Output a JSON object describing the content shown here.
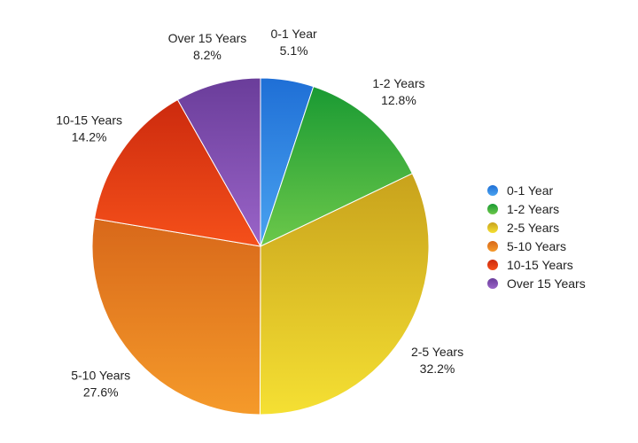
{
  "chart_data": {
    "type": "pie",
    "title": "",
    "legend_position": "right",
    "slices": [
      {
        "label": "0-1 Year",
        "percent_label": "5.1%",
        "value": 5.1,
        "color": "#1f6fd6",
        "color_light": "#4aa3f0"
      },
      {
        "label": "1-2 Years",
        "percent_label": "12.8%",
        "value": 12.8,
        "color": "#1a9a33",
        "color_light": "#6cc84a"
      },
      {
        "label": "2-5 Years",
        "percent_label": "32.2%",
        "value": 32.2,
        "color": "#c8a21c",
        "color_light": "#f5e033"
      },
      {
        "label": "5-10 Years",
        "percent_label": "27.6%",
        "value": 27.6,
        "color": "#d8681a",
        "color_light": "#f59a2a"
      },
      {
        "label": "10-15 Years",
        "percent_label": "14.2%",
        "value": 14.2,
        "color": "#cc2a0e",
        "color_light": "#f5501a"
      },
      {
        "label": "Over 15 Years",
        "percent_label": "8.2%",
        "value": 8.2,
        "color": "#6a3d9a",
        "color_light": "#9a64c8"
      }
    ]
  }
}
